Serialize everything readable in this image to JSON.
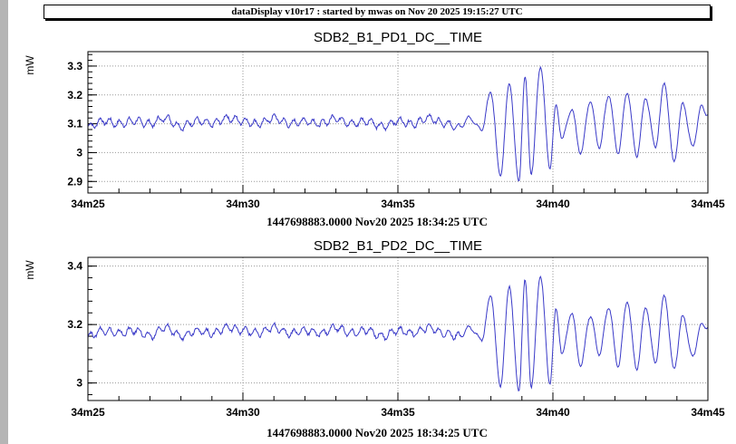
{
  "banner": "dataDisplay v10r17 : started by mwas on Nov 20 2025 19:15:27 UTC",
  "colors": {
    "trace": "#3a3ac8",
    "grid": "#9a9a9a",
    "frame": "#000000"
  },
  "chart_data": [
    {
      "type": "line",
      "title": "SDB2_B1_PD1_DC__TIME",
      "ylabel": "mW",
      "xlabel": "1447698883.0000 Nov20 2025 18:34:25 UTC",
      "x_ticks": [
        "34m25",
        "34m30",
        "34m35",
        "34m40",
        "34m45"
      ],
      "x_range_s": [
        0,
        20
      ],
      "y_ticks": [
        2.9,
        3,
        3.1,
        3.2,
        3.3
      ],
      "y_tick_labels": [
        "2.9",
        "3",
        "3.1",
        "3.2",
        "3.3"
      ],
      "ylim": [
        2.86,
        3.35
      ],
      "grid": true,
      "series": [
        {
          "values_sampled": {
            "x": [
              0,
              0.5,
              1,
              1.5,
              2,
              2.5,
              3,
              3.5,
              4,
              4.5,
              5,
              5.5,
              6,
              6.5,
              7,
              7.5,
              8,
              8.5,
              9,
              9.5,
              10,
              10.5,
              11,
              11.5,
              12,
              12.3,
              12.7,
              13,
              13.3,
              13.6,
              13.9,
              14.1,
              14.3,
              14.6,
              14.9,
              15.1,
              15.3,
              15.6,
              15.9,
              16.2,
              16.5,
              16.8,
              17.1,
              17.4,
              17.7,
              18.0,
              18.3,
              18.6,
              18.9,
              19.2,
              19.5,
              19.8,
              20
            ],
            "y": [
              3.09,
              3.11,
              3.1,
              3.11,
              3.1,
              3.12,
              3.09,
              3.11,
              3.1,
              3.12,
              3.11,
              3.1,
              3.12,
              3.1,
              3.11,
              3.1,
              3.12,
              3.1,
              3.11,
              3.09,
              3.11,
              3.1,
              3.12,
              3.1,
              3.09,
              3.12,
              3.08,
              3.21,
              2.92,
              3.24,
              2.9,
              3.26,
              2.93,
              3.3,
              2.95,
              3.16,
              3.05,
              3.15,
              3.0,
              3.18,
              3.02,
              3.2,
              3.0,
              3.21,
              2.99,
              3.19,
              3.02,
              3.24,
              2.97,
              3.17,
              3.02,
              3.16,
              3.13
            ]
          }
        }
      ]
    },
    {
      "type": "line",
      "title": "SDB2_B1_PD2_DC__TIME",
      "ylabel": "mW",
      "xlabel": "1447698883.0000 Nov20 2025 18:34:25 UTC",
      "x_ticks": [
        "34m25",
        "34m30",
        "34m35",
        "34m40",
        "34m45"
      ],
      "x_range_s": [
        0,
        20
      ],
      "y_ticks": [
        3,
        3.2,
        3.4
      ],
      "y_tick_labels": [
        "3",
        "3.2",
        "3.4"
      ],
      "ylim": [
        2.94,
        3.43
      ],
      "grid": true,
      "series": [
        {
          "values_sampled": {
            "x": [
              0,
              0.5,
              1,
              1.5,
              2,
              2.5,
              3,
              3.5,
              4,
              4.5,
              5,
              5.5,
              6,
              6.5,
              7,
              7.5,
              8,
              8.5,
              9,
              9.5,
              10,
              10.5,
              11,
              11.5,
              12,
              12.3,
              12.7,
              13,
              13.3,
              13.6,
              13.9,
              14.1,
              14.3,
              14.6,
              14.9,
              15.1,
              15.3,
              15.6,
              15.9,
              16.2,
              16.5,
              16.8,
              17.1,
              17.4,
              17.7,
              18.0,
              18.3,
              18.6,
              18.9,
              19.2,
              19.5,
              19.8,
              20
            ],
            "y": [
              3.16,
              3.18,
              3.17,
              3.18,
              3.16,
              3.19,
              3.16,
              3.18,
              3.17,
              3.19,
              3.18,
              3.17,
              3.19,
              3.17,
              3.18,
              3.17,
              3.19,
              3.17,
              3.18,
              3.16,
              3.18,
              3.17,
              3.19,
              3.17,
              3.16,
              3.19,
              3.15,
              3.3,
              2.99,
              3.33,
              2.97,
              3.35,
              2.99,
              3.37,
              3.0,
              3.25,
              3.1,
              3.24,
              3.06,
              3.23,
              3.1,
              3.26,
              3.06,
              3.28,
              3.05,
              3.26,
              3.07,
              3.3,
              3.05,
              3.23,
              3.09,
              3.2,
              3.19
            ]
          }
        }
      ]
    }
  ]
}
